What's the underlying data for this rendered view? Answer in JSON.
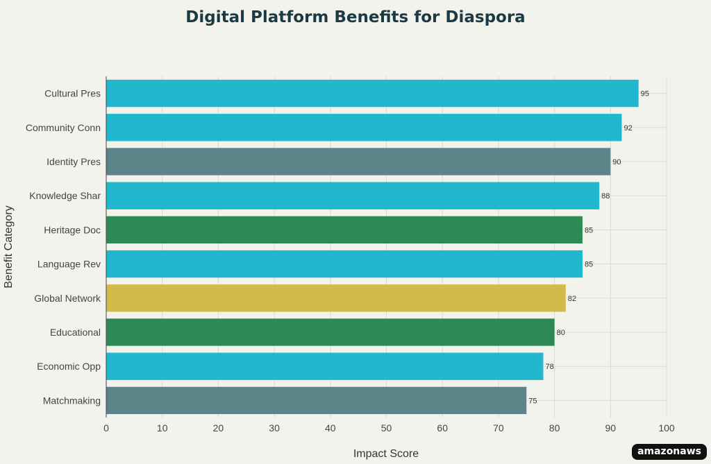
{
  "chart_data": {
    "type": "bar",
    "orientation": "horizontal",
    "title": "Digital Platform Benefits for Diaspora",
    "xlabel": "Impact Score",
    "ylabel": "Benefit Category",
    "xlim": [
      0,
      100
    ],
    "xticks": [
      "0",
      "10",
      "20",
      "30",
      "40",
      "50",
      "60",
      "70",
      "80",
      "90",
      "100"
    ],
    "grid": true,
    "categories": [
      "Cultural Pres",
      "Community Conn",
      "Identity Pres",
      "Knowledge Shar",
      "Heritage Doc",
      "Language Rev",
      "Global Network",
      "Educational",
      "Economic Opp",
      "Matchmaking"
    ],
    "values": [
      95,
      92,
      90,
      88,
      85,
      85,
      82,
      80,
      78,
      75
    ],
    "colors": [
      "#21b8cf",
      "#21b8cf",
      "#5d8589",
      "#21b8cf",
      "#2d8a55",
      "#21b8cf",
      "#d3bb4b",
      "#2d8a55",
      "#21b8cf",
      "#5d8589"
    ]
  },
  "watermark": "amazonaws"
}
